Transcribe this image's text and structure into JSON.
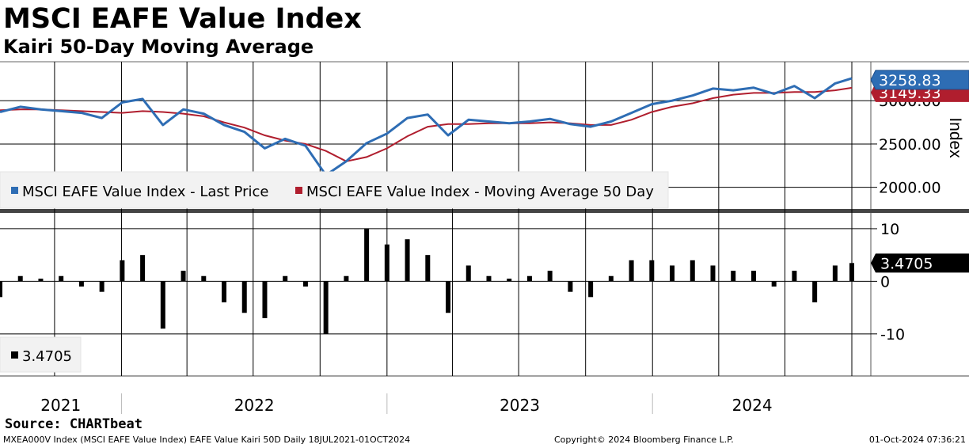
{
  "header": {
    "title": "MSCI EAFE Value Index",
    "subtitle": "Kairi 50-Day Moving Average"
  },
  "footer": {
    "source": "Source: CHARTbeat",
    "ticker_info": "MXEA000V Index (MSCI EAFE Value Index) EAFE Value Kairi 50D  Daily 18JUL2021-01OCT2024",
    "copyright": "Copyright© 2024 Bloomberg Finance L.P.",
    "timestamp": "01-Oct-2024 07:36:21"
  },
  "colors": {
    "price": "#2e6db4",
    "moving_average": "#b01e2e",
    "kairi": "#000000",
    "price_badge": "#2e6db4",
    "ma_badge": "#b01e2e",
    "kairi_badge": "#000000"
  },
  "chart_data": [
    {
      "type": "line",
      "panel": "upper",
      "ylabel": "Index",
      "ylim": [
        1750,
        3450
      ],
      "yticks": [
        "2000.00",
        "2500.00",
        "3000.00"
      ],
      "x_categories": [
        "2021",
        "2022",
        "2023",
        "2024"
      ],
      "grid": true,
      "legend_position": "bottom-left",
      "legend": [
        "MSCI EAFE Value Index - Last Price",
        "MSCI EAFE Value Index - Moving Average 50 Day"
      ],
      "last_price_label": "3258.83",
      "ma_label": "3149.33",
      "x": [
        "2021-07-18",
        "2021-08-15",
        "2021-09-12",
        "2021-10-10",
        "2021-11-07",
        "2021-12-05",
        "2022-01-02",
        "2022-01-30",
        "2022-02-27",
        "2022-03-27",
        "2022-04-24",
        "2022-05-22",
        "2022-06-19",
        "2022-07-17",
        "2022-08-14",
        "2022-09-11",
        "2022-10-09",
        "2022-11-06",
        "2022-12-04",
        "2023-01-01",
        "2023-01-29",
        "2023-02-26",
        "2023-03-26",
        "2023-04-23",
        "2023-05-21",
        "2023-06-18",
        "2023-07-16",
        "2023-08-13",
        "2023-09-10",
        "2023-10-08",
        "2023-11-05",
        "2023-12-03",
        "2023-12-31",
        "2024-01-28",
        "2024-02-25",
        "2024-03-24",
        "2024-04-21",
        "2024-05-19",
        "2024-06-16",
        "2024-07-14",
        "2024-08-11",
        "2024-09-08",
        "2024-10-01"
      ],
      "series": [
        {
          "name": "MSCI EAFE Value Index - Last Price",
          "values": [
            2870,
            2930,
            2900,
            2880,
            2860,
            2800,
            2980,
            3020,
            2720,
            2900,
            2850,
            2720,
            2640,
            2450,
            2560,
            2480,
            2140,
            2300,
            2510,
            2620,
            2800,
            2840,
            2600,
            2780,
            2760,
            2740,
            2760,
            2790,
            2730,
            2700,
            2760,
            2860,
            2960,
            3000,
            3060,
            3140,
            3120,
            3150,
            3080,
            3170,
            3030,
            3200,
            3258.83
          ]
        },
        {
          "name": "MSCI EAFE Value Index - Moving Average 50 Day",
          "values": [
            2890,
            2900,
            2900,
            2890,
            2880,
            2870,
            2860,
            2880,
            2870,
            2850,
            2820,
            2750,
            2690,
            2600,
            2540,
            2500,
            2420,
            2300,
            2350,
            2450,
            2590,
            2700,
            2730,
            2730,
            2740,
            2740,
            2740,
            2750,
            2740,
            2720,
            2720,
            2780,
            2870,
            2930,
            2970,
            3030,
            3070,
            3090,
            3090,
            3100,
            3100,
            3120,
            3149.33
          ]
        }
      ]
    },
    {
      "type": "bar",
      "panel": "lower",
      "ylim": [
        -18,
        13
      ],
      "yticks": [
        "10",
        "0",
        "-10"
      ],
      "grid": true,
      "legend_position": "bottom-left",
      "legend": [
        "3.4705"
      ],
      "last_value_label": "3.4705",
      "x": [
        "2021-07-18",
        "2021-08-15",
        "2021-09-12",
        "2021-10-10",
        "2021-11-07",
        "2021-12-05",
        "2022-01-02",
        "2022-01-30",
        "2022-02-27",
        "2022-03-27",
        "2022-04-24",
        "2022-05-22",
        "2022-06-19",
        "2022-07-17",
        "2022-08-14",
        "2022-09-11",
        "2022-10-09",
        "2022-11-06",
        "2022-12-04",
        "2023-01-01",
        "2023-01-29",
        "2023-02-26",
        "2023-03-26",
        "2023-04-23",
        "2023-05-21",
        "2023-06-18",
        "2023-07-16",
        "2023-08-13",
        "2023-09-10",
        "2023-10-08",
        "2023-11-05",
        "2023-12-03",
        "2023-12-31",
        "2024-01-28",
        "2024-02-25",
        "2024-03-24",
        "2024-04-21",
        "2024-05-19",
        "2024-06-16",
        "2024-07-14",
        "2024-08-11",
        "2024-09-08",
        "2024-10-01"
      ],
      "series": [
        {
          "values": [
            -3,
            1,
            0.5,
            1,
            -1,
            -2,
            4,
            5,
            -9,
            2,
            1,
            -4,
            -6,
            -7,
            1,
            -1,
            -10,
            1,
            10,
            7,
            8,
            5,
            -6,
            3,
            1,
            0.5,
            1,
            2,
            -2,
            -3,
            1,
            4,
            4,
            3,
            4,
            3,
            2,
            2,
            -1,
            2,
            -4,
            3,
            3.4705
          ]
        }
      ]
    }
  ]
}
